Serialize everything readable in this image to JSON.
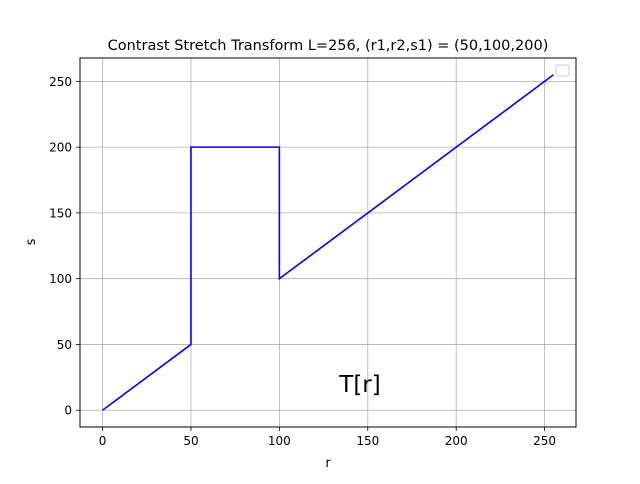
{
  "chart_data": {
    "type": "line",
    "title": "Contrast Stretch Transform L=256, (r1,r2,s1) = (50,100,200)",
    "xlabel": "r",
    "ylabel": "s",
    "annotation": "T[r]",
    "xlim": [
      -12.75,
      267.75
    ],
    "ylim": [
      -12.75,
      267.75
    ],
    "xticks": [
      0,
      50,
      100,
      150,
      200,
      250
    ],
    "yticks": [
      0,
      50,
      100,
      150,
      200,
      250
    ],
    "grid": true,
    "legend": {
      "placement": "upper right",
      "entries": []
    },
    "series": [
      {
        "color": "#0000ff",
        "x": [
          0,
          50,
          50,
          100,
          100,
          255
        ],
        "y": [
          0,
          50,
          200,
          200,
          100,
          255
        ]
      }
    ]
  }
}
